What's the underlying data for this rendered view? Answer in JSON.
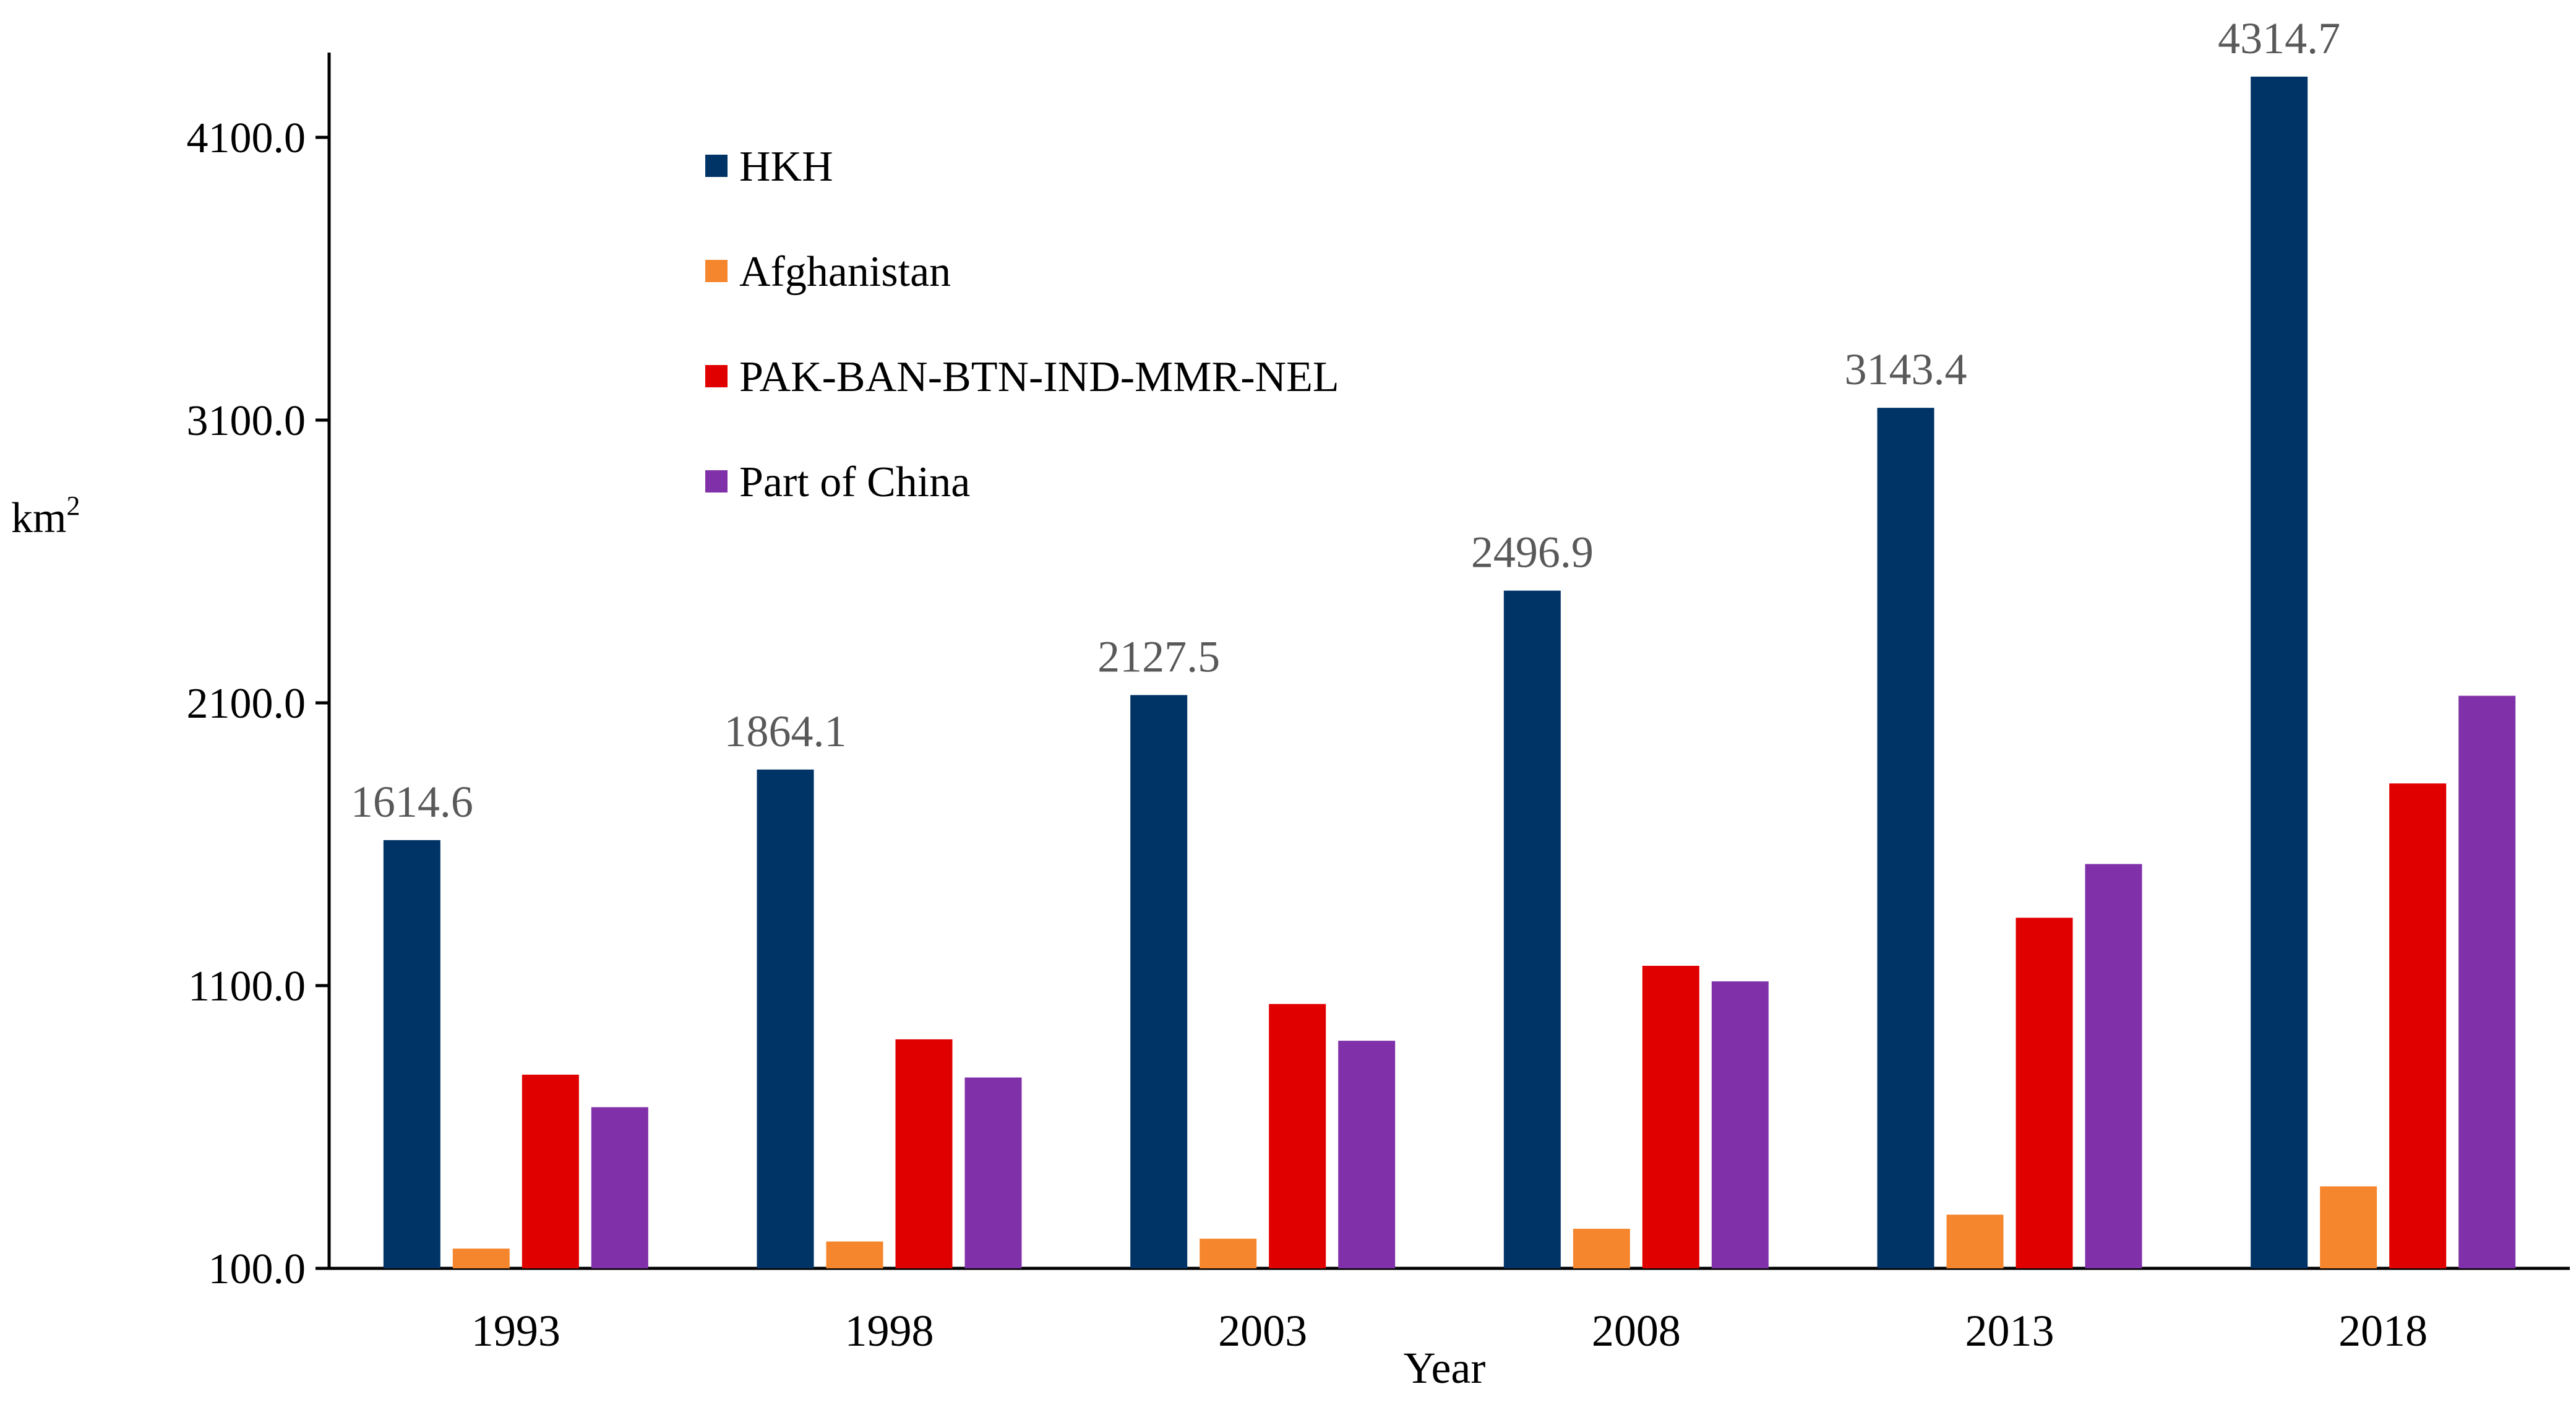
{
  "chart_data": {
    "type": "bar",
    "title": "",
    "xlabel": "Year",
    "ylabel": "km",
    "ylabel_superscript": "2",
    "categories": [
      "1993",
      "1998",
      "2003",
      "2008",
      "2013",
      "2018"
    ],
    "yticks": [
      "100.0",
      "1100.0",
      "2100.0",
      "3100.0",
      "4100.0"
    ],
    "ylim": [
      100,
      4400
    ],
    "series": [
      {
        "name": "HKH",
        "color": "#003366",
        "values": [
          1614.6,
          1864.1,
          2127.5,
          2496.9,
          3143.4,
          4314.7
        ]
      },
      {
        "name": "Afghanistan",
        "color": "#F5862D",
        "values": [
          170,
          195,
          205,
          240,
          290,
          390
        ]
      },
      {
        "name": "PAK-BAN-BTN-IND-MMR-NEL",
        "color": "#E00000",
        "values": [
          785,
          910,
          1035,
          1170,
          1340,
          1815
        ]
      },
      {
        "name": "Part of China",
        "color": "#8030A8",
        "values": [
          670,
          775,
          905,
          1115,
          1530,
          2125
        ]
      }
    ],
    "data_labels": [
      "1614.6",
      "1864.1",
      "2127.5",
      "2496.9",
      "3143.4",
      "4314.7"
    ],
    "legend_position": "top-left",
    "grid": false
  }
}
